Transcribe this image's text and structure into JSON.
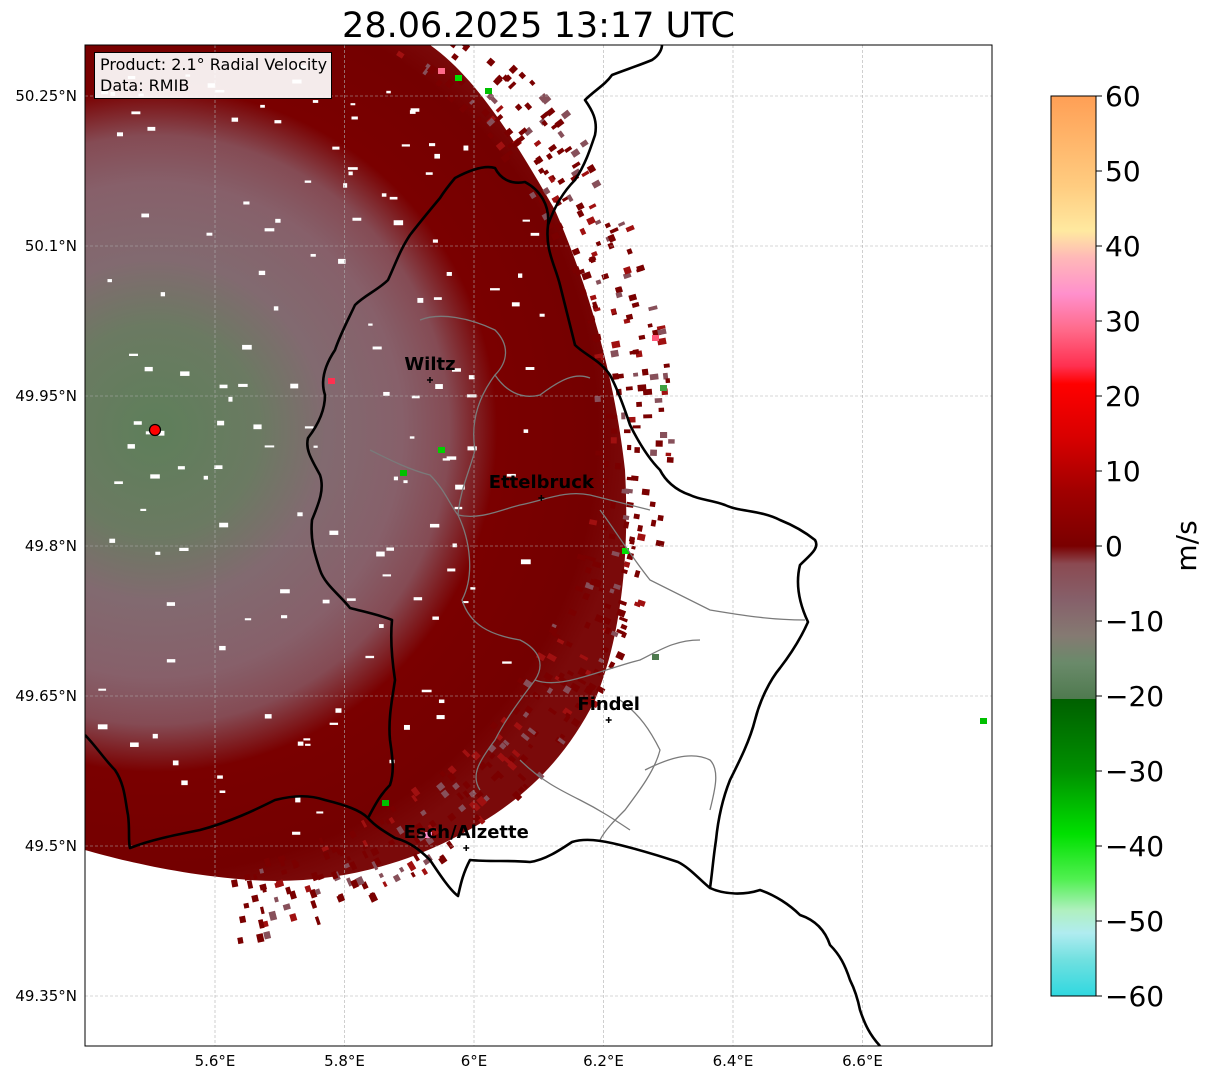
{
  "title": "28.06.2025 13:17 UTC",
  "info": {
    "product": "Product: 2.1° Radial Velocity",
    "data": "Data: RMIB"
  },
  "map": {
    "lon_range": [
      5.42,
      6.82
    ],
    "lat_range": [
      49.3,
      50.3
    ],
    "lon_ticks": [
      5.6,
      5.8,
      6.0,
      6.2,
      6.4,
      6.6
    ],
    "lon_tick_labels": [
      "5.6°E",
      "5.8°E",
      "6°E",
      "6.2°E",
      "6.4°E",
      "6.6°E"
    ],
    "lat_ticks": [
      49.35,
      49.5,
      49.65,
      49.8,
      49.95,
      50.1,
      50.25
    ],
    "lat_tick_labels": [
      "49.35°N",
      "49.5°N",
      "49.65°N",
      "49.8°N",
      "49.95°N",
      "50.1°N",
      "50.25°N"
    ],
    "gridlines": true,
    "radar_site": {
      "lon": 5.505,
      "lat": 49.914
    },
    "cities": [
      {
        "name": "Wiltz",
        "lon": 5.932,
        "lat": 49.966
      },
      {
        "name": "Ettelbruck",
        "lon": 6.104,
        "lat": 49.848
      },
      {
        "name": "Findel",
        "lon": 6.208,
        "lat": 49.626
      },
      {
        "name": "Esch/Alzette",
        "lon": 5.988,
        "lat": 49.498
      }
    ]
  },
  "colorbar": {
    "label": "m/s",
    "min": -60,
    "max": 60,
    "ticks": [
      60,
      50,
      40,
      30,
      20,
      10,
      0,
      -10,
      -20,
      -30,
      -40,
      -50,
      -60
    ],
    "tick_labels": [
      "60",
      "50",
      "40",
      "30",
      "20",
      "10",
      "0",
      "−10",
      "−20",
      "−30",
      "−40",
      "−50",
      "−60"
    ],
    "colors": {
      "far_positive": "#ffa060",
      "high_positive": "#ffd090",
      "pink": "#ff8fcc",
      "red": "#ff0000",
      "dark_red": "#7a0000",
      "near_zero_pos": "#88585f",
      "near_zero_neg": "#5a8a5a",
      "dark_green": "#006400",
      "green": "#00e000",
      "light_green": "#90f090",
      "cyan": "#30e0e0",
      "blue": "#2080c0"
    }
  }
}
